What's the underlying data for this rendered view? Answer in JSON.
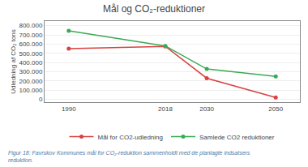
{
  "chart_data": {
    "type": "line",
    "title": "Mål og CO₂-reduktioner",
    "y_label": "Udledning af CO₂ tons",
    "x": [
      1990,
      2018,
      2030,
      2050
    ],
    "xlim": [
      1983,
      2057
    ],
    "xticks": [
      1990,
      2018,
      2030,
      2050
    ],
    "ylim": [
      -30000,
      850000
    ],
    "yticks": [
      0,
      {
        "value": 100000,
        "label": "100.000"
      },
      {
        "value": 200000,
        "label": "200.000"
      },
      {
        "value": 300000,
        "label": "300.000"
      },
      {
        "value": 400000,
        "label": "400.000"
      },
      {
        "value": 500000,
        "label": "500.000"
      },
      {
        "value": 600000,
        "label": "600.000"
      },
      {
        "value": 700000,
        "label": "700.000"
      },
      {
        "value": 800000,
        "label": "800.000"
      }
    ],
    "series": [
      {
        "name": "Mål for CO2-udledning",
        "color": "#d94040",
        "marker": "circle",
        "values": [
          550000,
          575000,
          230000,
          20000
        ]
      },
      {
        "name": "Samlede CO2 reduktioner",
        "color": "#3aaa55",
        "marker": "circle",
        "values": [
          745000,
          580000,
          330000,
          250000
        ]
      }
    ],
    "annotations": [
      "Figur 18: Favrskov Kommunes mål for CO₂-reduktion sammenholdt med de planlagte indsatsers\nreduktion."
    ],
    "grid": true,
    "legend": "bottom"
  }
}
